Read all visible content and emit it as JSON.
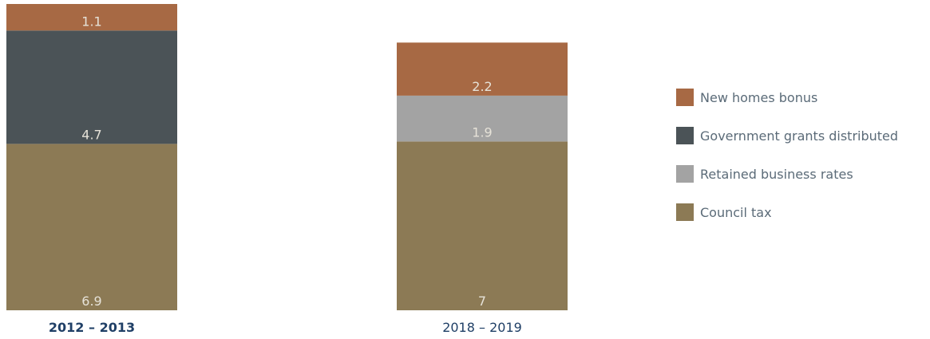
{
  "chart_data": {
    "type": "bar",
    "stacked": true,
    "categories": [
      "2012 – 2013",
      "2018 – 2019"
    ],
    "series": [
      {
        "name": "Council tax",
        "values": [
          6.9,
          7
        ],
        "color": "#8c7a55"
      },
      {
        "name": "Retained business rates",
        "values": [
          0,
          1.9
        ],
        "color": "#a3a3a3"
      },
      {
        "name": "Government grants distributed",
        "values": [
          4.7,
          0
        ],
        "color": "#4b5357"
      },
      {
        "name": "New homes bonus",
        "values": [
          1.1,
          2.2
        ],
        "color": "#a76944"
      }
    ],
    "legend": {
      "placement": "right",
      "order": [
        "New homes bonus",
        "Government grants distributed",
        "Retained business rates",
        "Council tax"
      ]
    },
    "ylim": [
      0,
      12.7
    ],
    "grid": false,
    "title": "",
    "xlabel": "",
    "ylabel": ""
  }
}
